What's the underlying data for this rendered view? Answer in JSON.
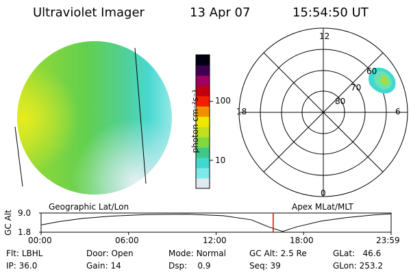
{
  "header": {
    "instrument": "Ultraviolet Imager",
    "date": "13 Apr 07",
    "time": "15:54:50 UT"
  },
  "colorbar": {
    "unit_label": "photon cm⁻²s⁻¹",
    "ticks": [
      "100",
      "10"
    ],
    "colors": [
      "#e0e8f0",
      "#80e8e8",
      "#40d8d0",
      "#40c888",
      "#80d840",
      "#c0e020",
      "#f0e800",
      "#f09000",
      "#f02000",
      "#c00010",
      "#a00060",
      "#400050",
      "#000010"
    ]
  },
  "polar_plot": {
    "mlt_labels": {
      "top": "12",
      "bottom": "0",
      "left": "18",
      "right": "6"
    },
    "lat_labels": [
      "60",
      "70",
      "80"
    ]
  },
  "timeline": {
    "ylabel": "GC Alt",
    "yticks": [
      "9.0",
      "1.8"
    ],
    "left_label": "Geographic Lat/Lon",
    "right_label": "Apex  MLat/MLT",
    "xticks": [
      "00:00",
      "06:00",
      "12:00",
      "18:00",
      "23:59"
    ],
    "current_time_fraction": 0.663,
    "curve_color": "#000000",
    "marker_color": "#e00000"
  },
  "info": {
    "filter": {
      "label": "Flt:",
      "value": "LBHL"
    },
    "ip": {
      "label": "IP:",
      "value": "36.0"
    },
    "door": {
      "label": "Door:",
      "value": "Open"
    },
    "gain": {
      "label": "Gain:",
      "value": "14"
    },
    "mode": {
      "label": "Mode:",
      "value": "Normal"
    },
    "dsp": {
      "label": "Dsp:",
      "value": "0.9"
    },
    "gc_alt": {
      "label": "GC Alt:",
      "value": "2.5 Re"
    },
    "seq": {
      "label": "Seq:",
      "value": "39"
    },
    "glat": {
      "label": "GLat:",
      "value": "46.6"
    },
    "glon": {
      "label": "GLon:",
      "value": "253.2"
    }
  }
}
